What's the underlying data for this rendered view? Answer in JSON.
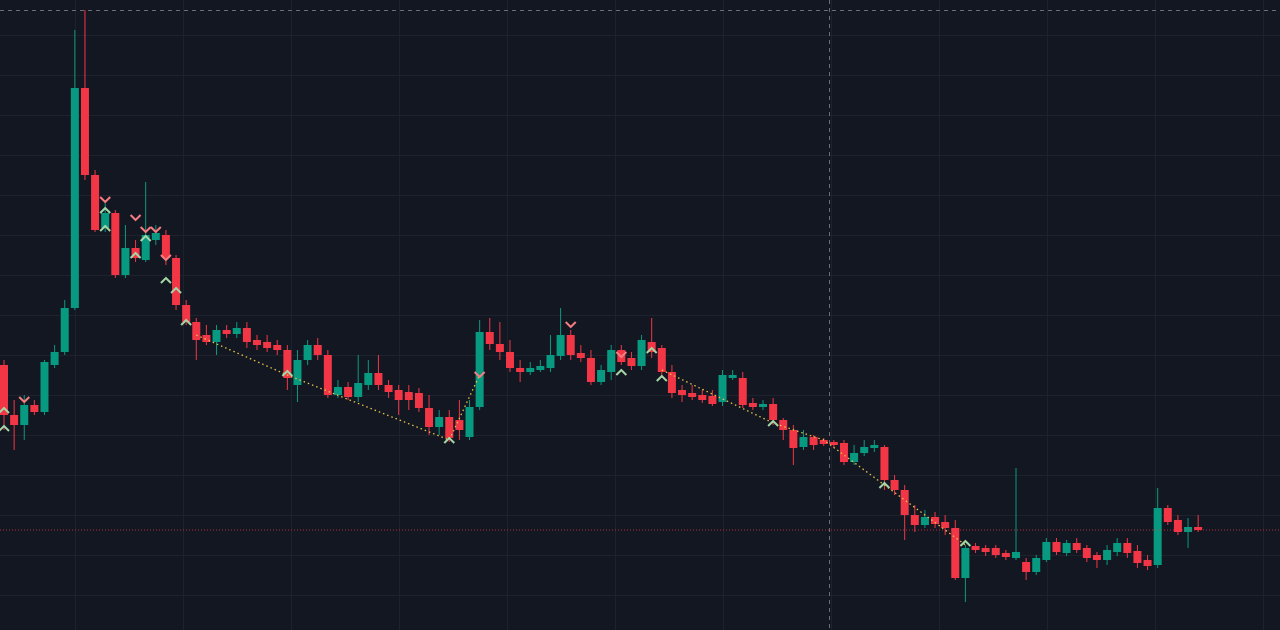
{
  "chart_data": {
    "type": "candlestick",
    "open": [
      265,
      215,
      205,
      225,
      218,
      265,
      278,
      322,
      542,
      455,
      402,
      417,
      355,
      382,
      370,
      390,
      395,
      372,
      325,
      308,
      295,
      288,
      300,
      296,
      302,
      290,
      288,
      285,
      280,
      245,
      270,
      285,
      275,
      235,
      243,
      233,
      245,
      257,
      245,
      240,
      238,
      237,
      222,
      203,
      213,
      210,
      193,
      223,
      298,
      286,
      278,
      262,
      258,
      260,
      262,
      274,
      295,
      277,
      272,
      248,
      258,
      280,
      272,
      264,
      288,
      282,
      258,
      240,
      237,
      235,
      234,
      228,
      252,
      252,
      227,
      223,
      226,
      210,
      200,
      183,
      193,
      190,
      188,
      187,
      168,
      177,
      182,
      183,
      150,
      140,
      115,
      105,
      113,
      108,
      102,
      52,
      84,
      82,
      82,
      77,
      72,
      68,
      58,
      70,
      88,
      77,
      87,
      82,
      75,
      70,
      78,
      87,
      79,
      70,
      65,
      122,
      110,
      98,
      103
    ],
    "high": [
      270,
      230,
      235,
      230,
      270,
      285,
      330,
      600,
      620,
      460,
      430,
      420,
      405,
      390,
      448,
      405,
      400,
      375,
      330,
      312,
      305,
      305,
      305,
      308,
      308,
      295,
      295,
      290,
      285,
      280,
      290,
      292,
      280,
      250,
      248,
      275,
      270,
      275,
      250,
      245,
      245,
      242,
      235,
      220,
      220,
      230,
      230,
      310,
      312,
      308,
      290,
      270,
      268,
      270,
      295,
      322,
      300,
      285,
      280,
      265,
      285,
      285,
      278,
      295,
      312,
      285,
      265,
      245,
      245,
      240,
      240,
      260,
      260,
      258,
      232,
      230,
      232,
      212,
      205,
      200,
      195,
      192,
      190,
      190,
      185,
      190,
      190,
      185,
      155,
      145,
      125,
      120,
      118,
      115,
      110,
      85,
      87,
      85,
      85,
      80,
      162,
      72,
      75,
      92,
      92,
      90,
      92,
      85,
      78,
      85,
      92,
      92,
      85,
      75,
      142,
      125,
      115,
      112,
      115
    ],
    "low": [
      200,
      180,
      190,
      215,
      215,
      262,
      275,
      320,
      450,
      398,
      398,
      352,
      352,
      368,
      368,
      385,
      365,
      320,
      305,
      270,
      285,
      275,
      292,
      292,
      282,
      280,
      278,
      275,
      240,
      228,
      265,
      270,
      232,
      232,
      230,
      228,
      240,
      240,
      232,
      215,
      220,
      218,
      195,
      195,
      188,
      190,
      190,
      220,
      280,
      270,
      258,
      248,
      255,
      258,
      258,
      270,
      270,
      268,
      245,
      245,
      250,
      265,
      260,
      260,
      272,
      252,
      232,
      228,
      230,
      227,
      224,
      224,
      250,
      222,
      220,
      220,
      205,
      190,
      165,
      180,
      180,
      184,
      182,
      165,
      165,
      174,
      178,
      140,
      135,
      90,
      98,
      102,
      102,
      95,
      50,
      28,
      77,
      74,
      72,
      70,
      70,
      50,
      55,
      68,
      75,
      74,
      77,
      68,
      62,
      65,
      74,
      72,
      62,
      60,
      62,
      105,
      95,
      82,
      98
    ],
    "close": [
      215,
      205,
      225,
      218,
      268,
      278,
      322,
      542,
      455,
      400,
      417,
      355,
      382,
      372,
      395,
      397,
      372,
      325,
      308,
      290,
      288,
      300,
      296,
      302,
      288,
      285,
      282,
      280,
      252,
      270,
      285,
      275,
      235,
      243,
      233,
      247,
      257,
      245,
      238,
      230,
      230,
      222,
      203,
      213,
      192,
      200,
      223,
      298,
      286,
      278,
      262,
      258,
      262,
      264,
      275,
      295,
      275,
      272,
      248,
      260,
      280,
      268,
      264,
      290,
      278,
      258,
      237,
      235,
      233,
      230,
      226,
      255,
      255,
      225,
      223,
      226,
      210,
      200,
      182,
      193,
      185,
      186,
      185,
      168,
      177,
      183,
      185,
      150,
      140,
      115,
      105,
      113,
      106,
      102,
      52,
      82,
      80,
      78,
      75,
      73,
      78,
      58,
      72,
      88,
      78,
      87,
      80,
      72,
      70,
      80,
      87,
      77,
      67,
      64,
      122,
      108,
      98,
      103,
      100
    ],
    "up_color": "#089981",
    "down_color": "#f23645",
    "ylim": [
      0,
      630
    ],
    "zigzag": {
      "color": "#e9c44a",
      "x": [
        19,
        28,
        44,
        47,
        56,
        65,
        76,
        81,
        87,
        95
      ],
      "values": [
        295,
        255,
        190,
        255,
        null,
        260,
        207,
        190,
        145,
        85
      ]
    },
    "signals": {
      "buy": {
        "color": "#a5d6a7",
        "x": [
          0,
          0,
          10,
          10,
          13,
          14,
          16,
          17,
          18,
          28,
          44,
          61,
          64,
          65,
          76,
          87,
          95
        ],
        "values": [
          220,
          202,
          402,
          420,
          375,
          392,
          350,
          340,
          308,
          257,
          190,
          258,
          280,
          252,
          207,
          145,
          87
        ]
      },
      "sell": {
        "color": "#f77c80",
        "x": [
          2,
          10,
          13,
          14,
          15,
          16,
          47,
          56,
          61
        ],
        "values": [
          230,
          430,
          412,
          400,
          400,
          372,
          255,
          305,
          275
        ]
      }
    },
    "last_price_line": true
  }
}
